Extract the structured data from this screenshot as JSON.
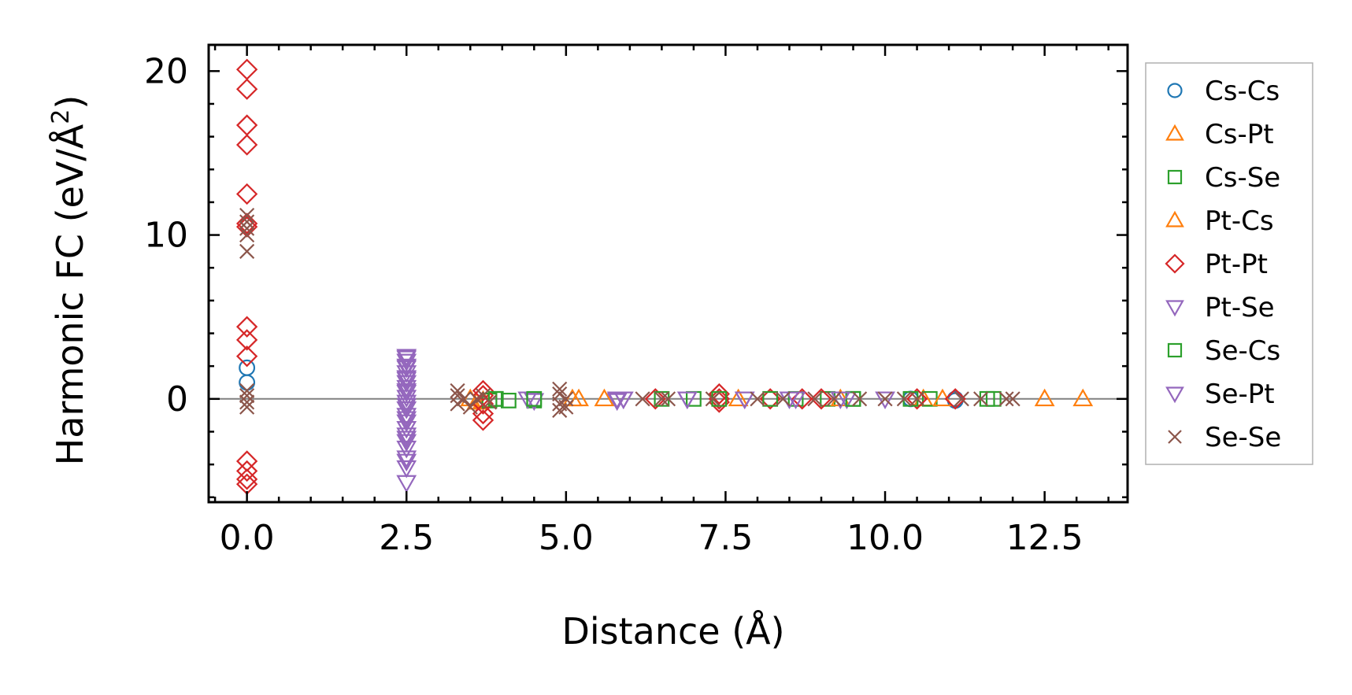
{
  "chart_data": {
    "type": "scatter",
    "xlabel": "Distance (Å)",
    "ylabel_main": "Harmonic FC (eV/Å",
    "ylabel_sup": "2",
    "ylabel_close": ")",
    "xlim": [
      -0.6,
      13.8
    ],
    "ylim": [
      -6.3,
      21.6
    ],
    "x_ticks": [
      0.0,
      2.5,
      5.0,
      7.5,
      10.0,
      12.5
    ],
    "x_tick_labels": [
      "0.0",
      "2.5",
      "5.0",
      "7.5",
      "10.0",
      "12.5"
    ],
    "y_ticks": [
      0,
      10,
      20
    ],
    "y_tick_labels": [
      "0",
      "10",
      "20"
    ],
    "x_minor_step": 0.5,
    "y_minor_step": 2,
    "zero_line": 0,
    "legend_position": "outside-right",
    "series": [
      {
        "name": "Cs-Cs",
        "marker": "circle",
        "color": "#1f77b4",
        "x": [
          0.0,
          0.0,
          11.1,
          11.1,
          10.4
        ],
        "y": [
          1.9,
          1.0,
          0.0,
          -0.1,
          0.0
        ]
      },
      {
        "name": "Cs-Pt",
        "marker": "triangle-up",
        "color": "#ff7f0e",
        "x": [
          3.6,
          3.7,
          5.1,
          5.6,
          10.6,
          12.5,
          13.1
        ],
        "y": [
          -0.2,
          -0.1,
          0.0,
          0.0,
          0.0,
          0.0,
          0.0
        ]
      },
      {
        "name": "Cs-Se",
        "marker": "square",
        "color": "#2ca02c",
        "x": [
          3.8,
          3.9,
          4.1,
          4.5,
          7.0,
          8.6,
          9.1,
          9.5,
          10.7,
          11.6,
          11.7
        ],
        "y": [
          -0.1,
          0.0,
          -0.1,
          -0.1,
          0.0,
          0.0,
          0.0,
          0.0,
          0.0,
          0.0,
          0.0
        ]
      },
      {
        "name": "Pt-Cs",
        "marker": "triangle-up",
        "color": "#ff7f0e",
        "x": [
          3.5,
          5.2,
          7.7,
          9.3,
          10.9
        ],
        "y": [
          0.0,
          0.0,
          0.0,
          0.0,
          0.0
        ]
      },
      {
        "name": "Pt-Pt",
        "marker": "diamond",
        "color": "#d62728",
        "x": [
          0.0,
          0.0,
          0.0,
          0.0,
          0.0,
          0.0,
          0.0,
          0.0,
          0.0,
          0.0,
          0.0,
          0.0,
          0.0,
          0.0,
          3.7,
          3.7,
          3.7,
          3.7,
          3.7,
          6.4,
          7.4,
          7.4,
          7.4,
          8.2,
          8.7,
          9.0,
          10.5,
          11.1
        ],
        "y": [
          20.1,
          18.9,
          16.7,
          15.5,
          12.5,
          10.7,
          10.5,
          4.4,
          3.6,
          2.6,
          -3.8,
          -4.4,
          -4.9,
          -5.2,
          0.5,
          0.2,
          -0.3,
          -0.9,
          -1.3,
          0.0,
          0.3,
          -0.2,
          0.0,
          0.0,
          0.0,
          0.0,
          0.0,
          0.0
        ]
      },
      {
        "name": "Pt-Se",
        "marker": "triangle-down",
        "color": "#9467bd",
        "x": [
          2.5,
          2.5,
          2.5,
          2.5,
          2.5,
          2.5,
          2.5,
          2.5,
          2.5,
          2.5,
          2.5,
          2.5,
          2.5,
          2.5,
          2.5,
          2.5,
          2.5,
          2.5,
          2.5,
          2.5,
          4.4,
          4.5,
          5.8,
          5.8,
          5.9,
          6.9,
          7.8,
          8.5,
          9.4,
          10.0
        ],
        "y": [
          2.6,
          2.3,
          1.9,
          1.6,
          1.3,
          1.0,
          0.7,
          0.4,
          0.1,
          -0.2,
          -0.6,
          -1.0,
          -1.4,
          -1.8,
          -2.2,
          -2.6,
          -3.0,
          -3.6,
          -4.2,
          -5.1,
          0.0,
          -0.1,
          0.0,
          -0.1,
          0.0,
          0.0,
          0.0,
          0.0,
          0.0,
          0.0
        ]
      },
      {
        "name": "Se-Cs",
        "marker": "square",
        "color": "#2ca02c",
        "x": [
          3.9,
          4.5,
          6.5,
          7.4,
          8.2,
          9.5,
          10.4
        ],
        "y": [
          0.0,
          0.0,
          0.0,
          0.0,
          0.0,
          0.0,
          0.0
        ]
      },
      {
        "name": "Se-Pt",
        "marker": "triangle-down",
        "color": "#9467bd",
        "x": [
          2.5,
          2.5,
          2.5,
          2.5,
          2.5,
          2.5,
          2.5,
          2.5,
          5.9,
          6.9,
          7.8,
          8.6,
          9.3
        ],
        "y": [
          2.5,
          2.0,
          1.2,
          0.5,
          -0.4,
          -1.2,
          -2.4,
          -3.8,
          0.0,
          0.0,
          0.0,
          0.0,
          0.0
        ]
      },
      {
        "name": "Se-Se",
        "marker": "x",
        "color": "#8c564b",
        "x": [
          0.0,
          0.0,
          0.0,
          0.0,
          0.0,
          0.0,
          0.0,
          0.0,
          0.0,
          3.3,
          3.3,
          3.4,
          3.3,
          3.5,
          3.6,
          3.7,
          3.8,
          4.9,
          4.9,
          5.0,
          4.9,
          5.0,
          4.9,
          6.2,
          6.5,
          6.6,
          7.3,
          8.0,
          8.4,
          8.9,
          9.2,
          9.6,
          10.0,
          10.3,
          10.5,
          11.2,
          11.5,
          11.9,
          12.0
        ],
        "y": [
          11.2,
          10.8,
          10.4,
          10.0,
          9.0,
          0.5,
          0.2,
          -0.2,
          -0.5,
          0.5,
          0.2,
          0.0,
          -0.3,
          -0.5,
          0.0,
          0.2,
          -0.2,
          0.6,
          0.3,
          0.0,
          -0.3,
          -0.5,
          -0.7,
          0.0,
          0.0,
          0.0,
          0.0,
          0.0,
          0.0,
          0.0,
          0.0,
          0.0,
          0.0,
          0.0,
          0.0,
          0.0,
          0.0,
          0.0,
          0.0
        ]
      }
    ]
  }
}
